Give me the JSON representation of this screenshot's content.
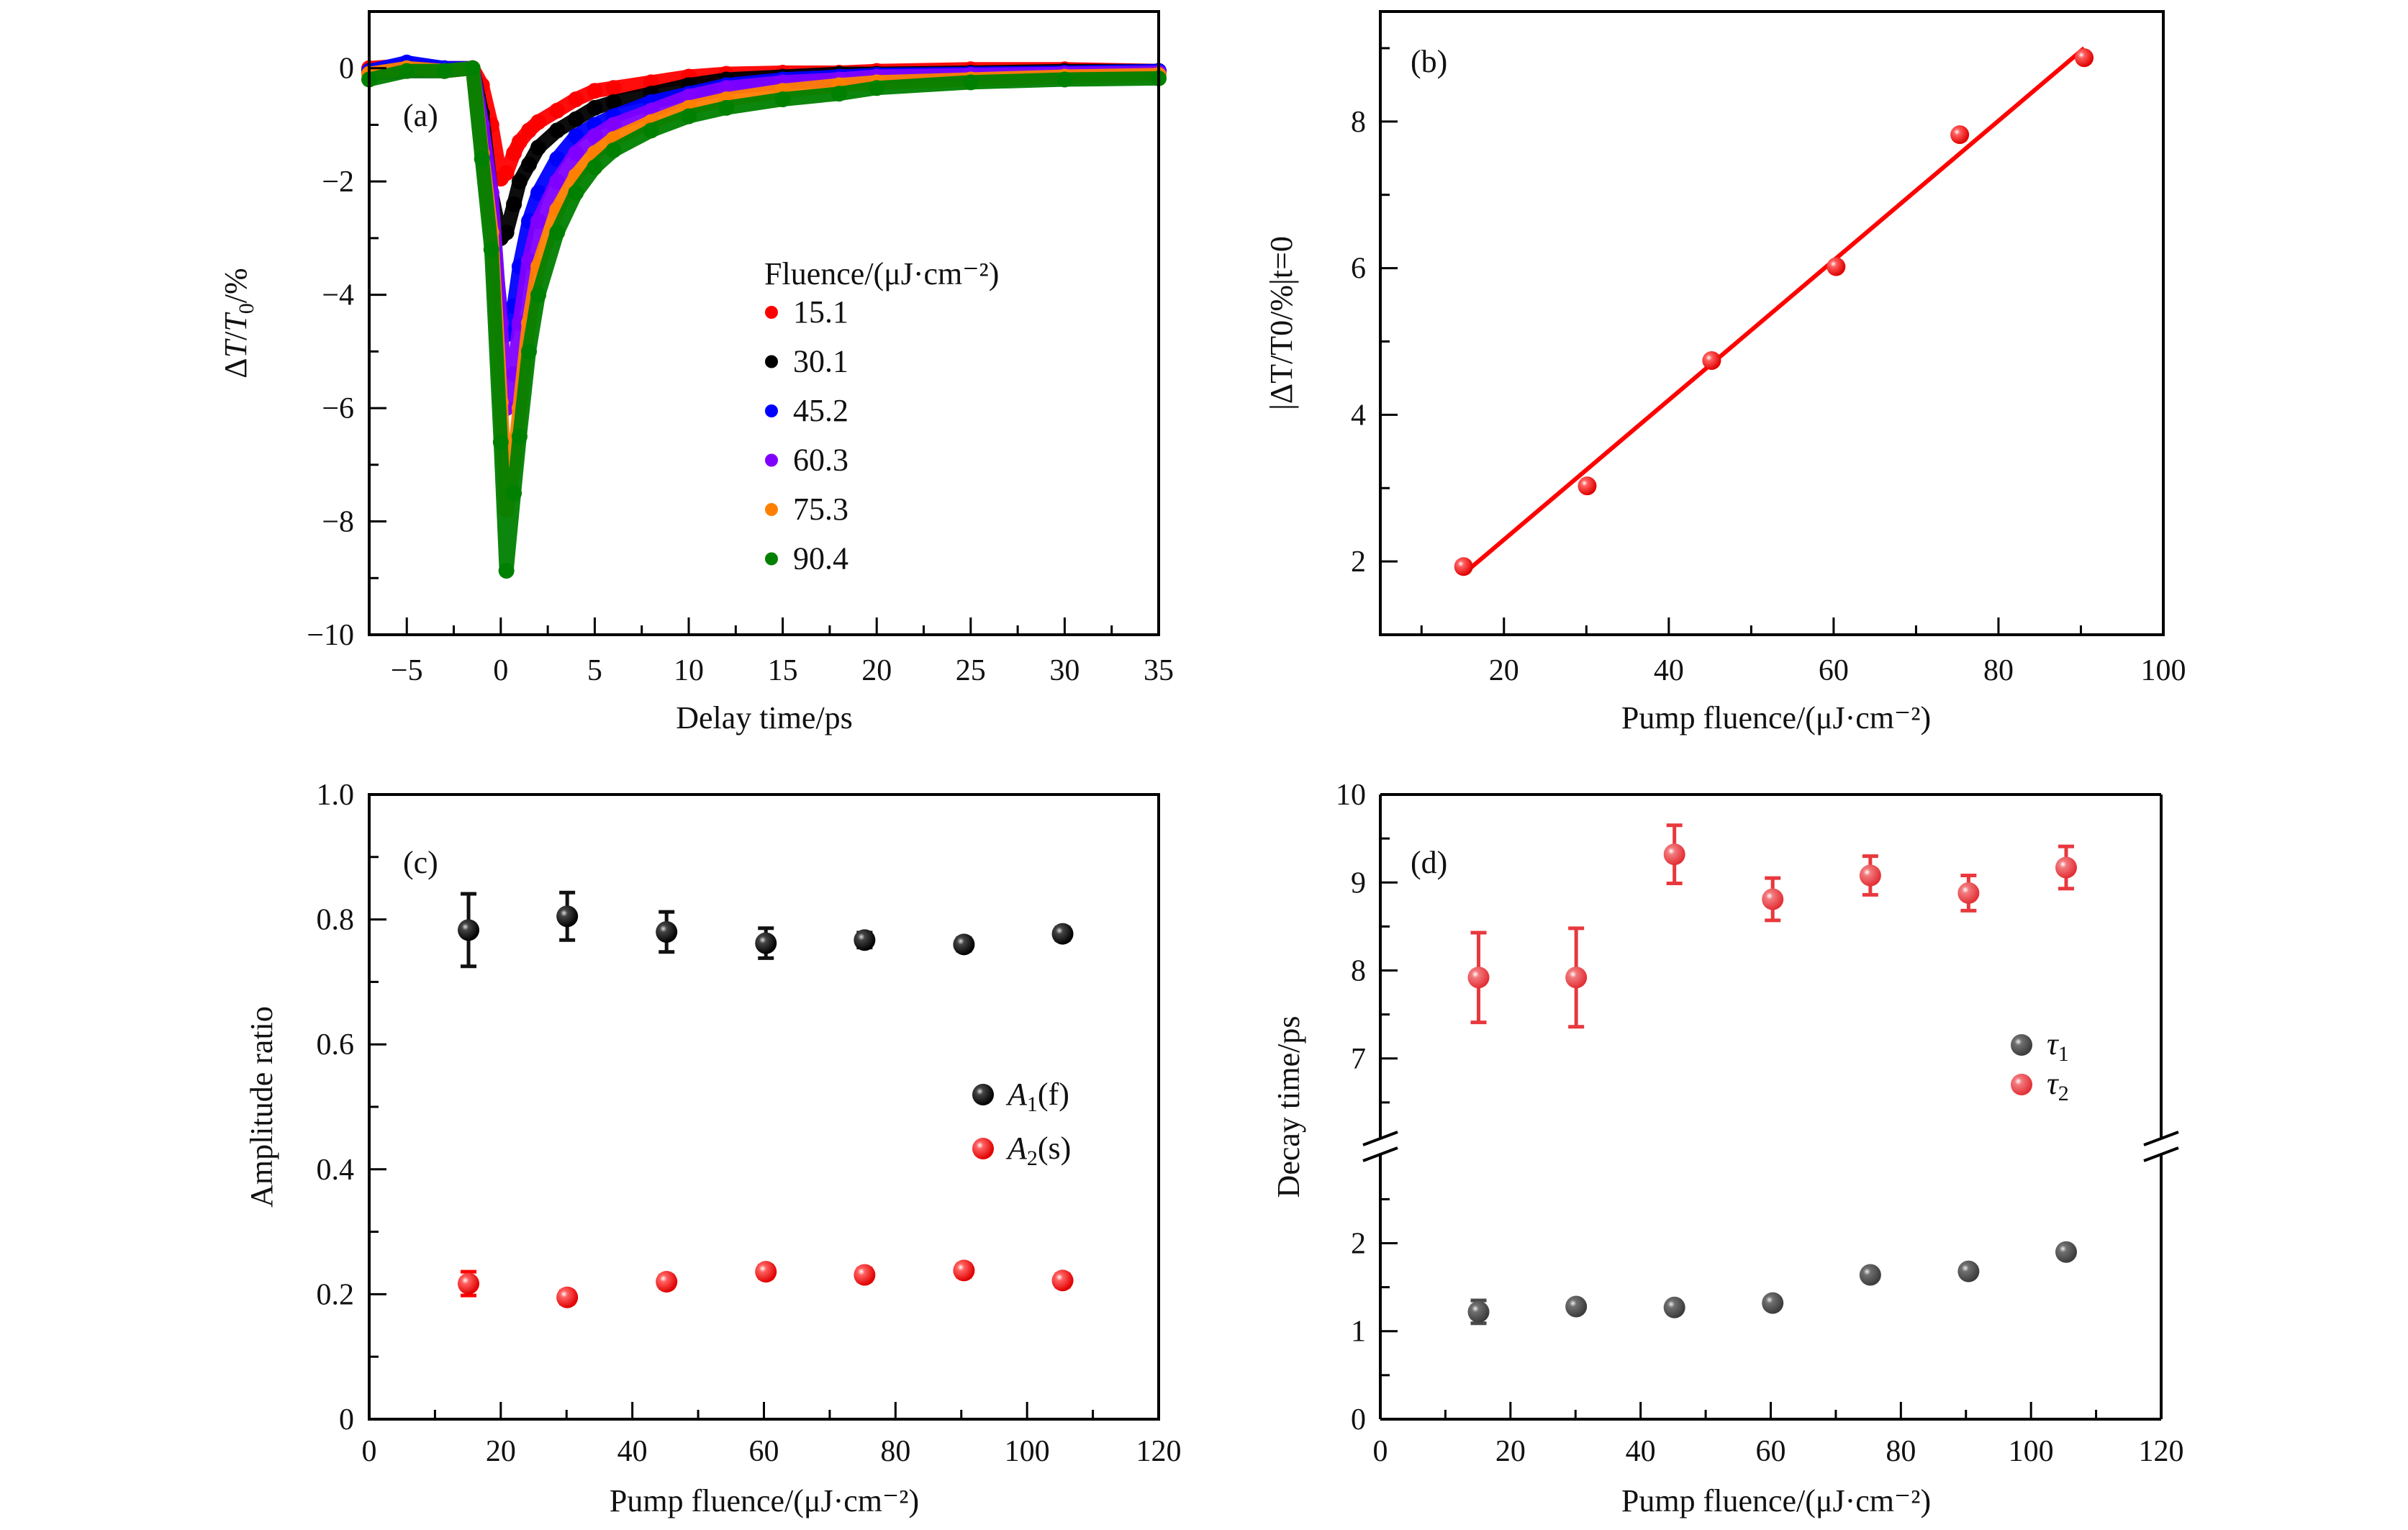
{
  "chart_data": [
    {
      "panel": "a",
      "type": "scatter",
      "panel_label": "(a)",
      "title": "",
      "xlabel": "Delay time/ps",
      "ylabel": "ΔT/T0/%",
      "ylabel_parts": {
        "delta": "Δ",
        "T": "T",
        "slash1": "/",
        "T0": "T",
        "sub0": "0",
        "rest": "/%"
      },
      "xlim": [
        -7,
        35
      ],
      "ylim": [
        -10,
        1
      ],
      "xticks": [
        -5,
        0,
        5,
        10,
        15,
        20,
        25,
        30,
        35
      ],
      "xtick_labels": [
        "−5",
        "0",
        "5",
        "10",
        "15",
        "20",
        "25",
        "30",
        "35"
      ],
      "yticks": [
        0,
        -2,
        -4,
        -6,
        -8,
        -10
      ],
      "ytick_labels": [
        "0",
        "−2",
        "−4",
        "−6",
        "−8",
        "−10"
      ],
      "grid": false,
      "legend_title": "Fluence/(μJ·cm⁻²)",
      "legend_position": "center-right",
      "x": [
        -7,
        -5,
        -3,
        -1.5,
        -1,
        -0.5,
        0,
        0.3,
        0.7,
        1,
        1.5,
        2,
        3,
        4,
        5,
        6,
        8,
        10,
        12,
        15,
        18,
        20,
        25,
        30,
        35
      ],
      "series": [
        {
          "name": "15.1",
          "color": "#ff0000",
          "values": [
            0,
            0.05,
            0,
            0,
            -0.3,
            -1.0,
            -1.95,
            -1.85,
            -1.5,
            -1.3,
            -1.1,
            -0.95,
            -0.75,
            -0.55,
            -0.4,
            -0.35,
            -0.25,
            -0.15,
            -0.1,
            -0.08,
            -0.08,
            -0.05,
            -0.02,
            -0.02,
            -0.05
          ]
        },
        {
          "name": "30.1",
          "color": "#000000",
          "values": [
            -0.05,
            0,
            -0.05,
            0,
            -0.8,
            -2.2,
            -3.0,
            -2.9,
            -2.4,
            -2.0,
            -1.7,
            -1.4,
            -1.1,
            -0.9,
            -0.7,
            -0.6,
            -0.45,
            -0.3,
            -0.2,
            -0.15,
            -0.1,
            -0.1,
            -0.08,
            -0.05,
            -0.05
          ]
        },
        {
          "name": "45.2",
          "color": "#0000ff",
          "values": [
            -0.05,
            0.1,
            0,
            0,
            -1.0,
            -2.7,
            -4.3,
            -4.7,
            -4.2,
            -3.5,
            -2.7,
            -2.2,
            -1.6,
            -1.2,
            -1.0,
            -0.85,
            -0.6,
            -0.45,
            -0.3,
            -0.2,
            -0.15,
            -0.12,
            -0.1,
            -0.08,
            -0.05
          ]
        },
        {
          "name": "60.3",
          "color": "#8000ff",
          "values": [
            -0.1,
            -0.05,
            -0.05,
            0,
            -1.0,
            -2.2,
            -4.5,
            -6.0,
            -5.4,
            -4.5,
            -3.4,
            -2.7,
            -2.0,
            -1.5,
            -1.2,
            -1.0,
            -0.75,
            -0.5,
            -0.35,
            -0.25,
            -0.2,
            -0.15,
            -0.12,
            -0.1,
            -0.08
          ]
        },
        {
          "name": "75.3",
          "color": "#ff8000",
          "values": [
            -0.1,
            0,
            -0.05,
            0,
            -1.5,
            -2.9,
            -5.9,
            -7.8,
            -7.0,
            -6.0,
            -4.5,
            -3.5,
            -2.5,
            -1.9,
            -1.5,
            -1.25,
            -0.95,
            -0.7,
            -0.55,
            -0.4,
            -0.3,
            -0.25,
            -0.2,
            -0.15,
            -0.12
          ]
        },
        {
          "name": "90.4",
          "color": "#008000",
          "values": [
            -0.2,
            -0.05,
            -0.05,
            0,
            -1.6,
            -3.2,
            -6.6,
            -8.87,
            -7.5,
            -6.5,
            -5.0,
            -4.0,
            -2.9,
            -2.2,
            -1.75,
            -1.45,
            -1.1,
            -0.85,
            -0.7,
            -0.55,
            -0.45,
            -0.35,
            -0.25,
            -0.2,
            -0.18
          ]
        }
      ]
    },
    {
      "panel": "b",
      "type": "scatter",
      "panel_label": "(b)",
      "title": "",
      "xlabel": "Pump fluence/(μJ·cm⁻²)",
      "ylabel": "|ΔT/T0/%|t=0",
      "xlim": [
        5,
        100
      ],
      "ylim": [
        1,
        9.5
      ],
      "xticks": [
        20,
        40,
        60,
        80,
        100
      ],
      "xtick_labels": [
        "20",
        "40",
        "60",
        "80",
        "100"
      ],
      "yticks": [
        2,
        4,
        6,
        8
      ],
      "ytick_labels": [
        "2",
        "4",
        "6",
        "8"
      ],
      "grid": false,
      "x": [
        15.1,
        30.1,
        45.2,
        60.3,
        75.3,
        90.4
      ],
      "series": [
        {
          "name": "data",
          "color": "#ff0000",
          "values": [
            1.93,
            3.03,
            4.74,
            6.02,
            7.82,
            8.87
          ]
        }
      ],
      "fit_line": {
        "name": "linear fit",
        "color": "#ff0000",
        "x": [
          15.1,
          90.4
        ],
        "y": [
          1.83,
          9.0
        ]
      }
    },
    {
      "panel": "c",
      "type": "scatter",
      "panel_label": "(c)",
      "title": "",
      "xlabel": "Pump fluence/(μJ·cm⁻²)",
      "ylabel": "Amplitude ratio",
      "xlim": [
        0,
        120
      ],
      "ylim": [
        0,
        1.0
      ],
      "xticks": [
        0,
        20,
        40,
        60,
        80,
        100,
        120
      ],
      "xtick_labels": [
        "0",
        "20",
        "40",
        "60",
        "80",
        "100",
        "120"
      ],
      "yticks": [
        0,
        0.2,
        0.4,
        0.6,
        0.8,
        1.0
      ],
      "ytick_labels": [
        "0",
        "0.2",
        "0.4",
        "0.6",
        "0.8",
        "1.0"
      ],
      "grid": false,
      "legend_position": "center-right",
      "x": [
        15.1,
        30.1,
        45.2,
        60.3,
        75.3,
        90.4,
        105.4
      ],
      "series": [
        {
          "name": "A1(f)",
          "label_main": "A",
          "label_sub": "1",
          "label_tail": "(f)",
          "color": "#111111",
          "values": [
            0.783,
            0.805,
            0.78,
            0.762,
            0.767,
            0.76,
            0.777
          ],
          "errors": [
            0.058,
            0.038,
            0.032,
            0.024,
            0.012,
            0.01,
            0.01
          ]
        },
        {
          "name": "A2(s)",
          "label_main": "A",
          "label_sub": "2",
          "label_tail": "(s)",
          "color": "#ff0000",
          "values": [
            0.217,
            0.195,
            0.22,
            0.236,
            0.231,
            0.238,
            0.222
          ],
          "errors": [
            0.019,
            0.01,
            0.01,
            0.01,
            0.01,
            0.01,
            0.01
          ]
        }
      ]
    },
    {
      "panel": "d",
      "type": "scatter",
      "panel_label": "(d)",
      "title": "",
      "xlabel": "Pump fluence/(μJ·cm⁻²)",
      "ylabel": "Decay time/ps",
      "xlim": [
        0,
        120
      ],
      "ylim_lower": [
        0,
        3.1
      ],
      "ylim_upper": [
        6,
        10
      ],
      "axis_break": true,
      "xticks": [
        0,
        20,
        40,
        60,
        80,
        100,
        120
      ],
      "xtick_labels": [
        "0",
        "20",
        "40",
        "60",
        "80",
        "100",
        "120"
      ],
      "yticks": [
        0,
        1,
        2,
        7,
        8,
        9,
        10
      ],
      "ytick_labels": [
        "0",
        "1",
        "2",
        "7",
        "8",
        "9",
        "10"
      ],
      "grid": false,
      "legend_position": "center-right",
      "x": [
        15.1,
        30.1,
        45.2,
        60.3,
        75.3,
        90.4,
        105.4
      ],
      "series": [
        {
          "name": "τ1",
          "label_main": "τ",
          "label_sub": "1",
          "color": "#4a4a4a",
          "values": [
            1.22,
            1.28,
            1.27,
            1.32,
            1.64,
            1.68,
            1.9
          ],
          "errors": [
            0.13,
            0.05,
            0.04,
            0.04,
            0.04,
            0.04,
            0.04
          ]
        },
        {
          "name": "τ2",
          "label_main": "τ",
          "label_sub": "2",
          "color": "#e8383d",
          "values": [
            7.92,
            7.92,
            9.32,
            8.81,
            9.08,
            8.88,
            9.17
          ],
          "errors": [
            0.51,
            0.56,
            0.33,
            0.24,
            0.22,
            0.2,
            0.24
          ]
        }
      ]
    }
  ]
}
